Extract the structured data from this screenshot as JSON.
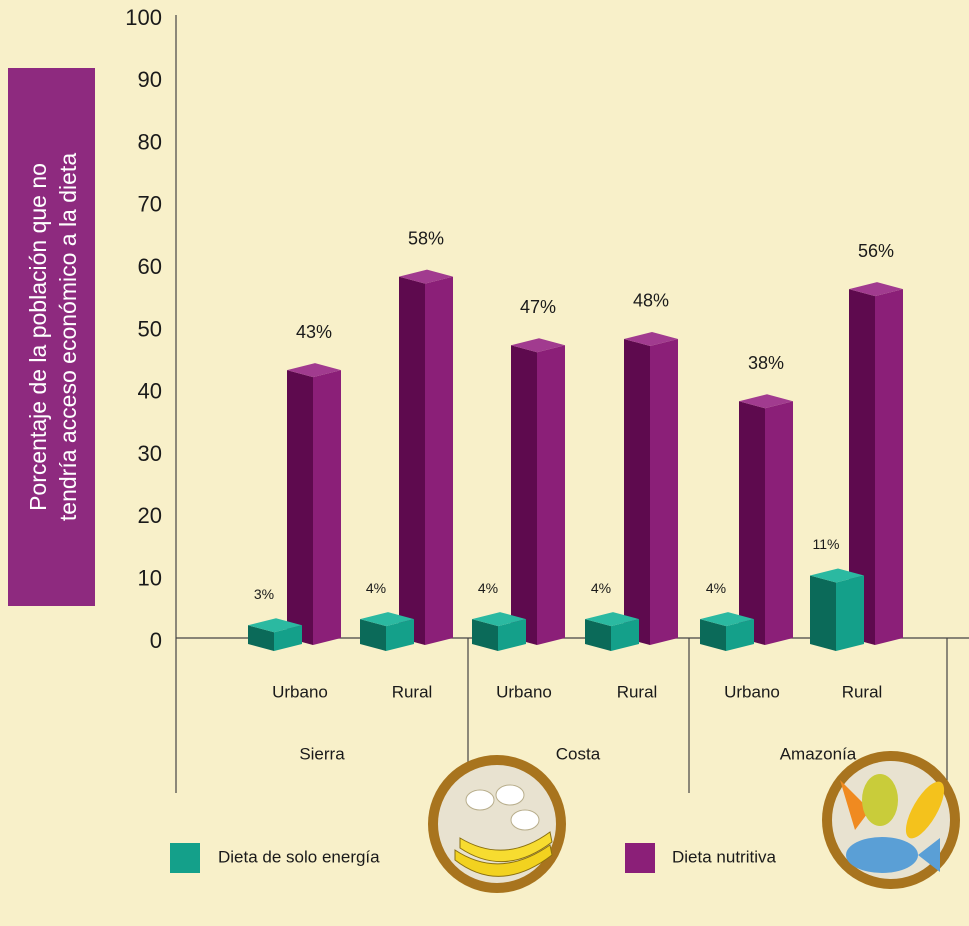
{
  "chart_data": {
    "type": "bar3d",
    "y_label_lines": [
      "Porcentaje de la población que no",
      "tendría acceso económico a la dieta"
    ],
    "categories": [
      "Urbano",
      "Rural",
      "Urbano",
      "Rural",
      "Urbano",
      "Rural"
    ],
    "groups": [
      "Sierra",
      "Costa",
      "Amazonía"
    ],
    "series": [
      {
        "name": "Dieta de solo energía",
        "color": "#14a08a",
        "values": [
          3,
          4,
          4,
          4,
          4,
          11
        ],
        "value_labels": [
          "3%",
          "4%",
          "4%",
          "4%",
          "4%",
          "11%"
        ]
      },
      {
        "name": "Dieta nutritiva",
        "color": "#8b1f78",
        "values": [
          43,
          58,
          47,
          48,
          38,
          56
        ],
        "value_labels": [
          "43%",
          "58%",
          "47%",
          "48%",
          "38%",
          "56%"
        ]
      }
    ],
    "ylim": [
      0,
      100
    ],
    "yticks": [
      0,
      10,
      20,
      30,
      40,
      50,
      60,
      70,
      80,
      90,
      100
    ]
  }
}
